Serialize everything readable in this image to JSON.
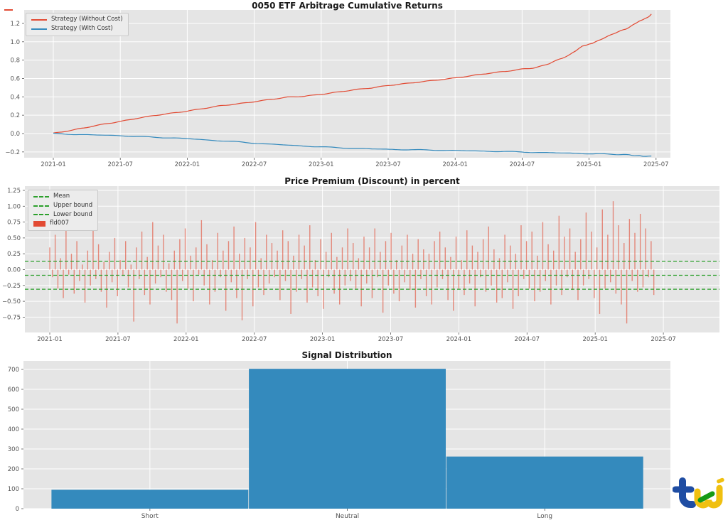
{
  "figure": {
    "bg": "#ffffff",
    "plot_bg": "#e5e5e5",
    "grid_color": "#ffffff",
    "tick_color": "#555555",
    "title_color": "#1a1a1a"
  },
  "chart_data": [
    {
      "type": "line",
      "title": "0050 ETF Arbitrage Cumulative Returns",
      "x_ticks": [
        "2021-01",
        "2021-07",
        "2022-01",
        "2022-07",
        "2023-01",
        "2023-07",
        "2024-01",
        "2024-07",
        "2025-01",
        "2025-07"
      ],
      "y_tick_labels": [
        "1.2",
        "1.0",
        "0.8",
        "0.6",
        "0.4",
        "0.2",
        "0.0",
        "−0.2"
      ],
      "y_tick_values": [
        1.2,
        1.0,
        0.8,
        0.6,
        0.4,
        0.2,
        0.0,
        -0.2
      ],
      "ylim": [
        -0.34,
        1.35
      ],
      "grid": true,
      "legend_position": "upper left",
      "series": [
        {
          "name": "Strategy (Without Cost)",
          "color": "#E24A33",
          "points": [
            [
              0,
              0
            ],
            [
              0.25,
              0.03
            ],
            [
              0.5,
              0.065
            ],
            [
              0.75,
              0.1
            ],
            [
              1,
              0.13
            ],
            [
              1.25,
              0.165
            ],
            [
              1.5,
              0.195
            ],
            [
              1.75,
              0.22
            ],
            [
              2,
              0.245
            ],
            [
              2.25,
              0.275
            ],
            [
              2.5,
              0.305
            ],
            [
              2.75,
              0.325
            ],
            [
              3,
              0.35
            ],
            [
              3.25,
              0.375
            ],
            [
              3.5,
              0.4
            ],
            [
              3.75,
              0.41
            ],
            [
              4,
              0.43
            ],
            [
              4.25,
              0.455
            ],
            [
              4.5,
              0.48
            ],
            [
              4.75,
              0.5
            ],
            [
              5,
              0.525
            ],
            [
              5.25,
              0.545
            ],
            [
              5.5,
              0.565
            ],
            [
              5.75,
              0.585
            ],
            [
              6,
              0.605
            ],
            [
              6.25,
              0.63
            ],
            [
              6.5,
              0.655
            ],
            [
              6.75,
              0.675
            ],
            [
              7,
              0.7
            ],
            [
              7.2,
              0.72
            ],
            [
              7.4,
              0.76
            ],
            [
              7.6,
              0.82
            ],
            [
              7.8,
              0.9
            ],
            [
              7.9,
              0.95
            ],
            [
              8,
              0.97
            ],
            [
              8.1,
              1.0
            ],
            [
              8.25,
              1.05
            ],
            [
              8.4,
              1.1
            ],
            [
              8.55,
              1.14
            ],
            [
              8.7,
              1.2
            ],
            [
              8.8,
              1.24
            ],
            [
              8.88,
              1.27
            ],
            [
              8.93,
              1.3
            ]
          ]
        },
        {
          "name": "Strategy (With Cost)",
          "color": "#348ABD",
          "points": [
            [
              0,
              0
            ],
            [
              0.3,
              -0.008
            ],
            [
              0.6,
              -0.015
            ],
            [
              0.9,
              -0.02
            ],
            [
              1.2,
              -0.03
            ],
            [
              1.5,
              -0.04
            ],
            [
              1.8,
              -0.048
            ],
            [
              2.1,
              -0.06
            ],
            [
              2.4,
              -0.075
            ],
            [
              2.7,
              -0.088
            ],
            [
              3,
              -0.105
            ],
            [
              3.3,
              -0.118
            ],
            [
              3.6,
              -0.13
            ],
            [
              3.9,
              -0.142
            ],
            [
              4.2,
              -0.152
            ],
            [
              4.5,
              -0.162
            ],
            [
              4.8,
              -0.168
            ],
            [
              5.1,
              -0.173
            ],
            [
              5.4,
              -0.177
            ],
            [
              5.7,
              -0.181
            ],
            [
              6,
              -0.185
            ],
            [
              6.3,
              -0.19
            ],
            [
              6.6,
              -0.194
            ],
            [
              6.9,
              -0.199
            ],
            [
              7.2,
              -0.205
            ],
            [
              7.5,
              -0.21
            ],
            [
              7.8,
              -0.215
            ],
            [
              8.1,
              -0.221
            ],
            [
              8.4,
              -0.228
            ],
            [
              8.6,
              -0.233
            ],
            [
              8.75,
              -0.243
            ],
            [
              8.85,
              -0.252
            ],
            [
              8.93,
              -0.246
            ]
          ]
        }
      ]
    },
    {
      "type": "bar",
      "title": "Price Premium (Discount) in percent",
      "x_ticks": [
        "2021-01",
        "2021-07",
        "2022-01",
        "2022-07",
        "2023-01",
        "2023-07",
        "2024-01",
        "2024-07",
        "2025-01",
        "2025-07"
      ],
      "y_tick_labels": [
        "1.25",
        "1.00",
        "0.75",
        "0.50",
        "0.25",
        "0.00",
        "−0.25",
        "−0.50",
        "−0.75"
      ],
      "y_tick_values": [
        1.25,
        1.0,
        0.75,
        0.5,
        0.25,
        0.0,
        -0.25,
        -0.5,
        -0.75
      ],
      "ylim": [
        -0.99,
        1.32
      ],
      "grid": true,
      "legend": [
        "Mean",
        "Upper bound",
        "Lower bound",
        "fld007"
      ],
      "legend_position": "upper left",
      "series_name": "fld007",
      "bar_color": "#E24A33",
      "bound_line_color": "#2ca02c",
      "lines": {
        "mean": -0.09,
        "upper": 0.13,
        "lower": -0.31
      },
      "bars_t_range": [
        0,
        8.86
      ],
      "bars": [
        0.35,
        -0.12,
        0.55,
        -0.3,
        0.18,
        -0.45,
        0.62,
        -0.08,
        0.25,
        -0.38,
        0.45,
        -0.18,
        0.08,
        -0.52,
        0.3,
        -0.25,
        0.7,
        -0.15,
        0.4,
        -0.35,
        0.12,
        -0.6,
        0.28,
        -0.2,
        0.5,
        -0.42,
        0.15,
        -0.1,
        0.45,
        -0.28,
        0.08,
        -0.82,
        0.35,
        -0.15,
        0.6,
        -0.4,
        0.2,
        -0.55,
        0.75,
        -0.22,
        0.38,
        -0.12,
        0.55,
        -0.35,
        0.1,
        -0.48,
        0.3,
        -0.85,
        0.48,
        -0.18,
        0.65,
        -0.3,
        0.22,
        -0.5,
        0.35,
        -0.08,
        0.78,
        -0.25,
        0.4,
        -0.55,
        0.15,
        -0.35,
        0.58,
        -0.12,
        0.3,
        -0.65,
        0.45,
        -0.2,
        0.68,
        -0.45,
        0.25,
        -0.8,
        0.5,
        -0.15,
        0.35,
        -0.58,
        0.75,
        -0.28,
        0.18,
        -0.4,
        0.55,
        -0.22,
        0.42,
        -0.12,
        0.3,
        -0.48,
        0.62,
        -0.18,
        0.45,
        -0.7,
        0.22,
        -0.35,
        0.55,
        -0.15,
        0.38,
        -0.52,
        0.7,
        -0.28,
        0.15,
        -0.42,
        0.48,
        -0.62,
        0.28,
        -0.12,
        0.58,
        -0.38,
        0.2,
        -0.55,
        0.35,
        -0.25,
        0.65,
        -0.18,
        0.42,
        -0.3,
        0.18,
        -0.58,
        0.52,
        -0.22,
        0.35,
        -0.45,
        0.65,
        -0.12,
        0.28,
        -0.68,
        0.45,
        -0.25,
        0.58,
        -0.38,
        0.15,
        -0.5,
        0.38,
        -0.2,
        0.55,
        -0.32,
        0.25,
        -0.6,
        0.48,
        -0.15,
        0.32,
        -0.42,
        0.25,
        -0.55,
        0.45,
        -0.28,
        0.6,
        -0.15,
        0.35,
        -0.48,
        0.2,
        -0.65,
        0.52,
        -0.3,
        0.15,
        -0.4,
        0.62,
        -0.22,
        0.38,
        -0.58,
        0.28,
        -0.12,
        0.48,
        -0.35,
        0.68,
        -0.25,
        0.32,
        -0.52,
        0.18,
        -0.45,
        0.55,
        -0.2,
        0.38,
        -0.62,
        0.25,
        -0.42,
        0.7,
        -0.15,
        0.45,
        -0.3,
        0.6,
        -0.5,
        0.22,
        -0.35,
        0.75,
        -0.18,
        0.4,
        -0.55,
        0.3,
        -0.25,
        0.85,
        -0.4,
        0.52,
        -0.12,
        0.65,
        -0.32,
        0.28,
        -0.48,
        0.48,
        -0.25,
        0.9,
        -0.15,
        0.6,
        -0.45,
        0.35,
        -0.7,
        0.95,
        -0.3,
        0.55,
        -0.2,
        1.08,
        -0.38,
        0.7,
        -0.55,
        0.42,
        -0.85,
        0.8,
        -0.18,
        0.58,
        -0.35,
        0.88,
        -0.28,
        0.65,
        -0.12,
        0.45,
        -0.4
      ]
    },
    {
      "type": "bar",
      "title": "Signal Distribution",
      "categories": [
        "Short",
        "Neutral",
        "Long"
      ],
      "values": [
        95,
        703,
        262
      ],
      "y_tick_labels": [
        "0",
        "100",
        "200",
        "300",
        "400",
        "500",
        "600",
        "700"
      ],
      "y_tick_values": [
        0,
        100,
        200,
        300,
        400,
        500,
        600,
        700
      ],
      "ylim": [
        0,
        743
      ],
      "grid": true,
      "bar_color": "#348ABD"
    }
  ],
  "logo": {
    "name": "tej",
    "colors": {
      "blue": "#1f4da3",
      "yellow": "#f0c010",
      "green": "#169a16"
    }
  }
}
